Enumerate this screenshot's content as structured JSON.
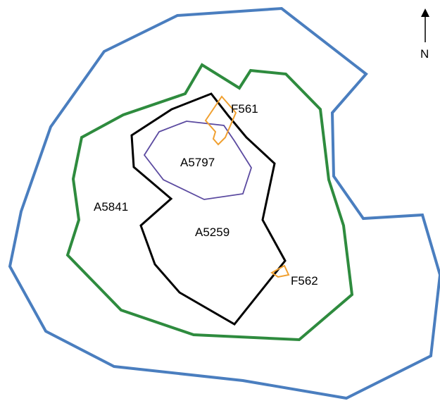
{
  "diagram": {
    "north_label": "N",
    "colors": {
      "outer": "#4a7ebf",
      "middle": "#2e8b3e",
      "inner": "#000000",
      "core": "#5b4aa0",
      "feature": "#f0a030",
      "arrow": "#000000"
    },
    "labels": {
      "a5841": "A5841",
      "a5259": "A5259",
      "a5797": "A5797",
      "f561": "F561",
      "f562": "F562"
    }
  }
}
